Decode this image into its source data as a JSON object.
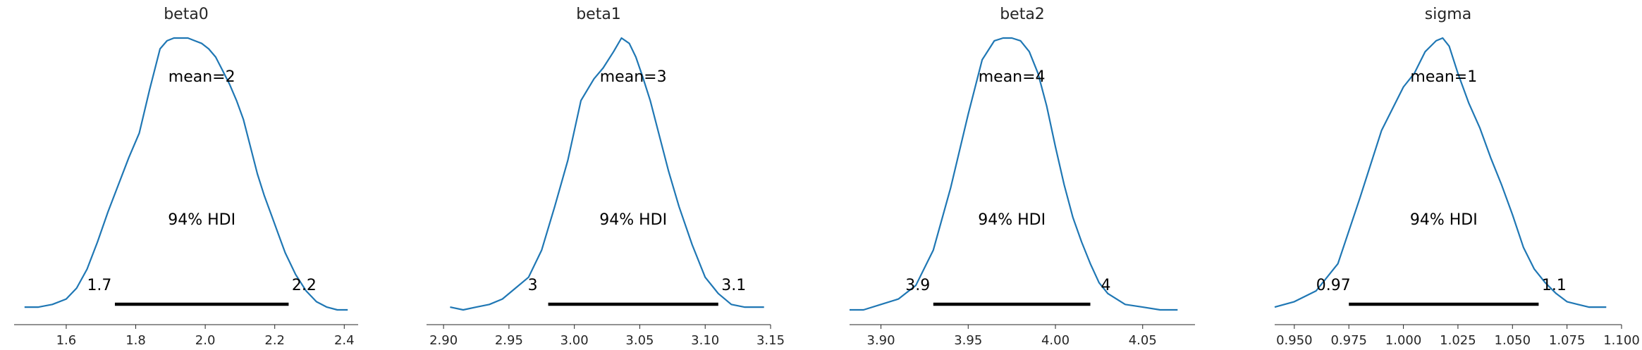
{
  "chart_data": [
    {
      "type": "line",
      "title": "beta0",
      "xlim": [
        1.45,
        2.44
      ],
      "xticks": [
        1.6,
        1.8,
        2.0,
        2.2,
        2.4
      ],
      "xtick_labels": [
        "1.6",
        "1.8",
        "2.0",
        "2.2",
        "2.4"
      ],
      "mean_label": "mean=2",
      "hdi_label": "94% HDI",
      "hdi": [
        1.74,
        2.24
      ],
      "hdi_low_label": "1.7",
      "hdi_high_label": "2.2",
      "color": "#1f77b4",
      "density": {
        "x": [
          1.48,
          1.52,
          1.56,
          1.6,
          1.63,
          1.66,
          1.69,
          1.72,
          1.75,
          1.78,
          1.81,
          1.84,
          1.87,
          1.89,
          1.91,
          1.93,
          1.95,
          1.97,
          1.99,
          2.01,
          2.03,
          2.05,
          2.07,
          2.09,
          2.11,
          2.13,
          2.15,
          2.17,
          2.19,
          2.21,
          2.23,
          2.26,
          2.29,
          2.32,
          2.35,
          2.38,
          2.41
        ],
        "y": [
          0.01,
          0.01,
          0.02,
          0.04,
          0.08,
          0.15,
          0.25,
          0.36,
          0.46,
          0.56,
          0.65,
          0.81,
          0.96,
          0.99,
          1.0,
          1.0,
          1.0,
          0.99,
          0.98,
          0.96,
          0.93,
          0.88,
          0.83,
          0.77,
          0.7,
          0.6,
          0.5,
          0.42,
          0.35,
          0.28,
          0.21,
          0.13,
          0.07,
          0.03,
          0.01,
          0.0,
          0.0
        ]
      }
    },
    {
      "type": "line",
      "title": "beta1",
      "xlim": [
        2.887,
        3.15
      ],
      "xticks": [
        2.9,
        2.95,
        3.0,
        3.05,
        3.1,
        3.15
      ],
      "xtick_labels": [
        "2.90",
        "2.95",
        "3.00",
        "3.05",
        "3.10",
        "3.15"
      ],
      "mean_label": "mean=3",
      "hdi_label": "94% HDI",
      "hdi": [
        2.98,
        3.11
      ],
      "hdi_low_label": "3",
      "hdi_high_label": "3.1",
      "color": "#1f77b4",
      "density": {
        "x": [
          2.905,
          2.915,
          2.925,
          2.935,
          2.945,
          2.955,
          2.965,
          2.975,
          2.985,
          2.995,
          3.005,
          3.015,
          3.022,
          3.03,
          3.036,
          3.042,
          3.047,
          3.052,
          3.058,
          3.065,
          3.072,
          3.08,
          3.09,
          3.1,
          3.11,
          3.12,
          3.13,
          3.145
        ],
        "y": [
          0.01,
          0.0,
          0.01,
          0.02,
          0.04,
          0.08,
          0.12,
          0.22,
          0.38,
          0.55,
          0.77,
          0.85,
          0.89,
          0.95,
          1.0,
          0.98,
          0.93,
          0.86,
          0.77,
          0.64,
          0.51,
          0.38,
          0.24,
          0.12,
          0.06,
          0.02,
          0.01,
          0.01
        ]
      }
    },
    {
      "type": "line",
      "title": "beta2",
      "xlim": [
        3.882,
        4.08
      ],
      "xticks": [
        3.9,
        3.95,
        4.0,
        4.05
      ],
      "xtick_labels": [
        "3.90",
        "3.95",
        "4.00",
        "4.05"
      ],
      "mean_label": "mean=4",
      "hdi_label": "94% HDI",
      "hdi": [
        3.93,
        4.02
      ],
      "hdi_low_label": "3.9",
      "hdi_high_label": "4",
      "color": "#1f77b4",
      "density": {
        "x": [
          3.882,
          3.89,
          3.9,
          3.91,
          3.92,
          3.93,
          3.94,
          3.95,
          3.958,
          3.965,
          3.97,
          3.975,
          3.98,
          3.985,
          3.99,
          3.995,
          4.0,
          4.005,
          4.01,
          4.015,
          4.02,
          4.025,
          4.03,
          4.04,
          4.05,
          4.06,
          4.07
        ],
        "y": [
          0.0,
          0.0,
          0.02,
          0.04,
          0.09,
          0.22,
          0.45,
          0.72,
          0.92,
          0.99,
          1.0,
          1.0,
          0.99,
          0.95,
          0.87,
          0.75,
          0.6,
          0.46,
          0.34,
          0.25,
          0.17,
          0.1,
          0.06,
          0.02,
          0.01,
          0.0,
          0.0
        ]
      }
    },
    {
      "type": "line",
      "title": "sigma",
      "xlim": [
        0.941,
        1.1
      ],
      "xticks": [
        0.95,
        0.975,
        1.0,
        1.025,
        1.05,
        1.075,
        1.1
      ],
      "xtick_labels": [
        "0.950",
        "0.975",
        "1.000",
        "1.025",
        "1.050",
        "1.075",
        "1.100"
      ],
      "mean_label": "mean=1",
      "hdi_label": "94% HDI",
      "hdi": [
        0.975,
        1.062
      ],
      "hdi_low_label": "0.97",
      "hdi_high_label": "1.1",
      "color": "#1f77b4",
      "density": {
        "x": [
          0.941,
          0.95,
          0.96,
          0.97,
          0.98,
          0.99,
          1.0,
          1.005,
          1.01,
          1.015,
          1.018,
          1.021,
          1.025,
          1.03,
          1.035,
          1.04,
          1.045,
          1.05,
          1.055,
          1.06,
          1.065,
          1.07,
          1.075,
          1.08,
          1.085,
          1.093
        ],
        "y": [
          0.01,
          0.03,
          0.07,
          0.17,
          0.41,
          0.66,
          0.82,
          0.87,
          0.95,
          0.99,
          1.0,
          0.97,
          0.87,
          0.76,
          0.67,
          0.56,
          0.46,
          0.35,
          0.23,
          0.15,
          0.1,
          0.06,
          0.03,
          0.02,
          0.01,
          0.01
        ]
      }
    }
  ]
}
